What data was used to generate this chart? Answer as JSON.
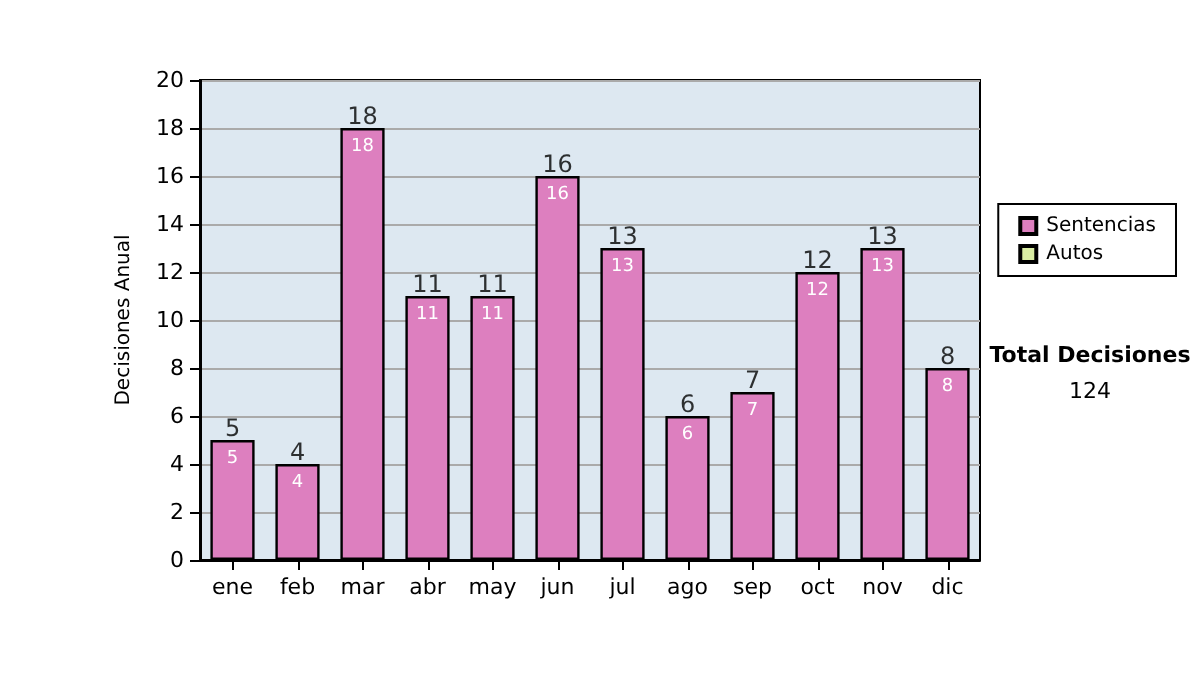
{
  "chart_data": {
    "type": "bar",
    "ylabel": "Decisiones Anual",
    "categories": [
      "ene",
      "feb",
      "mar",
      "abr",
      "may",
      "jun",
      "jul",
      "ago",
      "sep",
      "oct",
      "nov",
      "dic"
    ],
    "series": [
      {
        "name": "Sentencias",
        "color": "#dd7fbf",
        "values": [
          5,
          4,
          18,
          11,
          11,
          16,
          13,
          6,
          7,
          12,
          13,
          8
        ],
        "value_labels": [
          "5",
          "4",
          "18",
          "11",
          "11",
          "16",
          "13",
          "6",
          "7",
          "12",
          "13",
          "8"
        ]
      },
      {
        "name": "Autos",
        "color": "#d9eda3",
        "values": [
          0,
          0,
          0,
          0,
          0,
          0,
          0,
          0,
          0,
          0,
          0,
          0
        ]
      }
    ],
    "stacked": true,
    "totals": [
      "5",
      "4",
      "18",
      "11",
      "11",
      "16",
      "13",
      "6",
      "7",
      "12",
      "13",
      "8"
    ],
    "ylim": [
      0,
      20
    ],
    "yticks": [
      0,
      2,
      4,
      6,
      8,
      10,
      12,
      14,
      16,
      18,
      20
    ],
    "grid": "y",
    "legend": "right",
    "annotations": [
      "Total Decisiones",
      "124"
    ]
  }
}
